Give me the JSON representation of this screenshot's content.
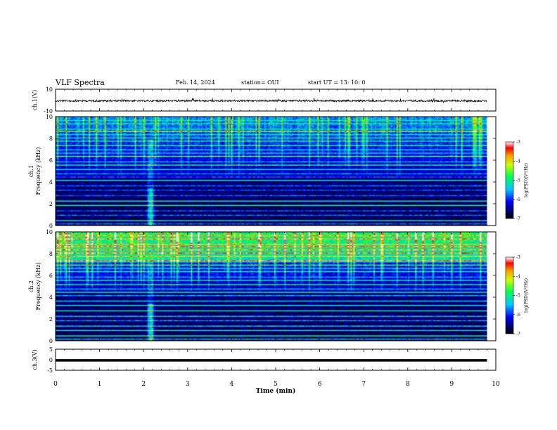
{
  "header": {
    "title": "VLF Spectra",
    "date": "Feb. 14, 2024",
    "station": "station= OUI",
    "start": "start  UT  =   13: 10: 0"
  },
  "chart_data": [
    {
      "type": "line",
      "panel": "ch1-waveform",
      "ylabel": "ch.1(V)",
      "ylim": [
        -10,
        10
      ],
      "yticks": [
        "10",
        "-10"
      ],
      "xlim": [
        0,
        10
      ],
      "series": [
        {
          "values_description_free": true,
          "baseline": 0
        }
      ]
    },
    {
      "type": "heatmap",
      "panel": "ch1-spectrogram",
      "ylabel_line1": "ch.1",
      "ylabel_line2": "Frequency (kHz)",
      "ylim": [
        0,
        10
      ],
      "yticks": [
        "0",
        "2",
        "4",
        "6",
        "8",
        "10"
      ],
      "xlim": [
        0,
        9.8
      ],
      "colorbar": {
        "label": "log(PSD)(V²/Hz)",
        "range": [
          -7,
          -3
        ],
        "ticks": [
          "-3",
          "-4",
          "-5",
          "-6",
          "-7"
        ]
      }
    },
    {
      "type": "heatmap",
      "panel": "ch2-spectrogram",
      "ylabel_line1": "ch.2",
      "ylabel_line2": "Frequency (kHz)",
      "ylim": [
        0,
        10
      ],
      "yticks": [
        "0",
        "2",
        "4",
        "6",
        "8",
        "10"
      ],
      "xlim": [
        0,
        9.8
      ],
      "colorbar": {
        "label": "log(PSD)(V²/Hz)",
        "range": [
          -7,
          -3
        ],
        "ticks": [
          "-3",
          "-4",
          "-5",
          "-6",
          "-7"
        ]
      }
    },
    {
      "type": "line",
      "panel": "ch3-waveform",
      "ylabel": "ch.3(V)",
      "ylim": [
        -5,
        5
      ],
      "yticks": [
        "5",
        "0",
        "-5"
      ],
      "xlim": [
        0,
        10
      ],
      "series": [
        {
          "constant_value": -0.3
        }
      ]
    }
  ],
  "xaxis": {
    "label": "Time  (min)",
    "ticks": [
      "0",
      "1",
      "2",
      "3",
      "4",
      "5",
      "6",
      "7",
      "8",
      "9",
      "10"
    ]
  }
}
